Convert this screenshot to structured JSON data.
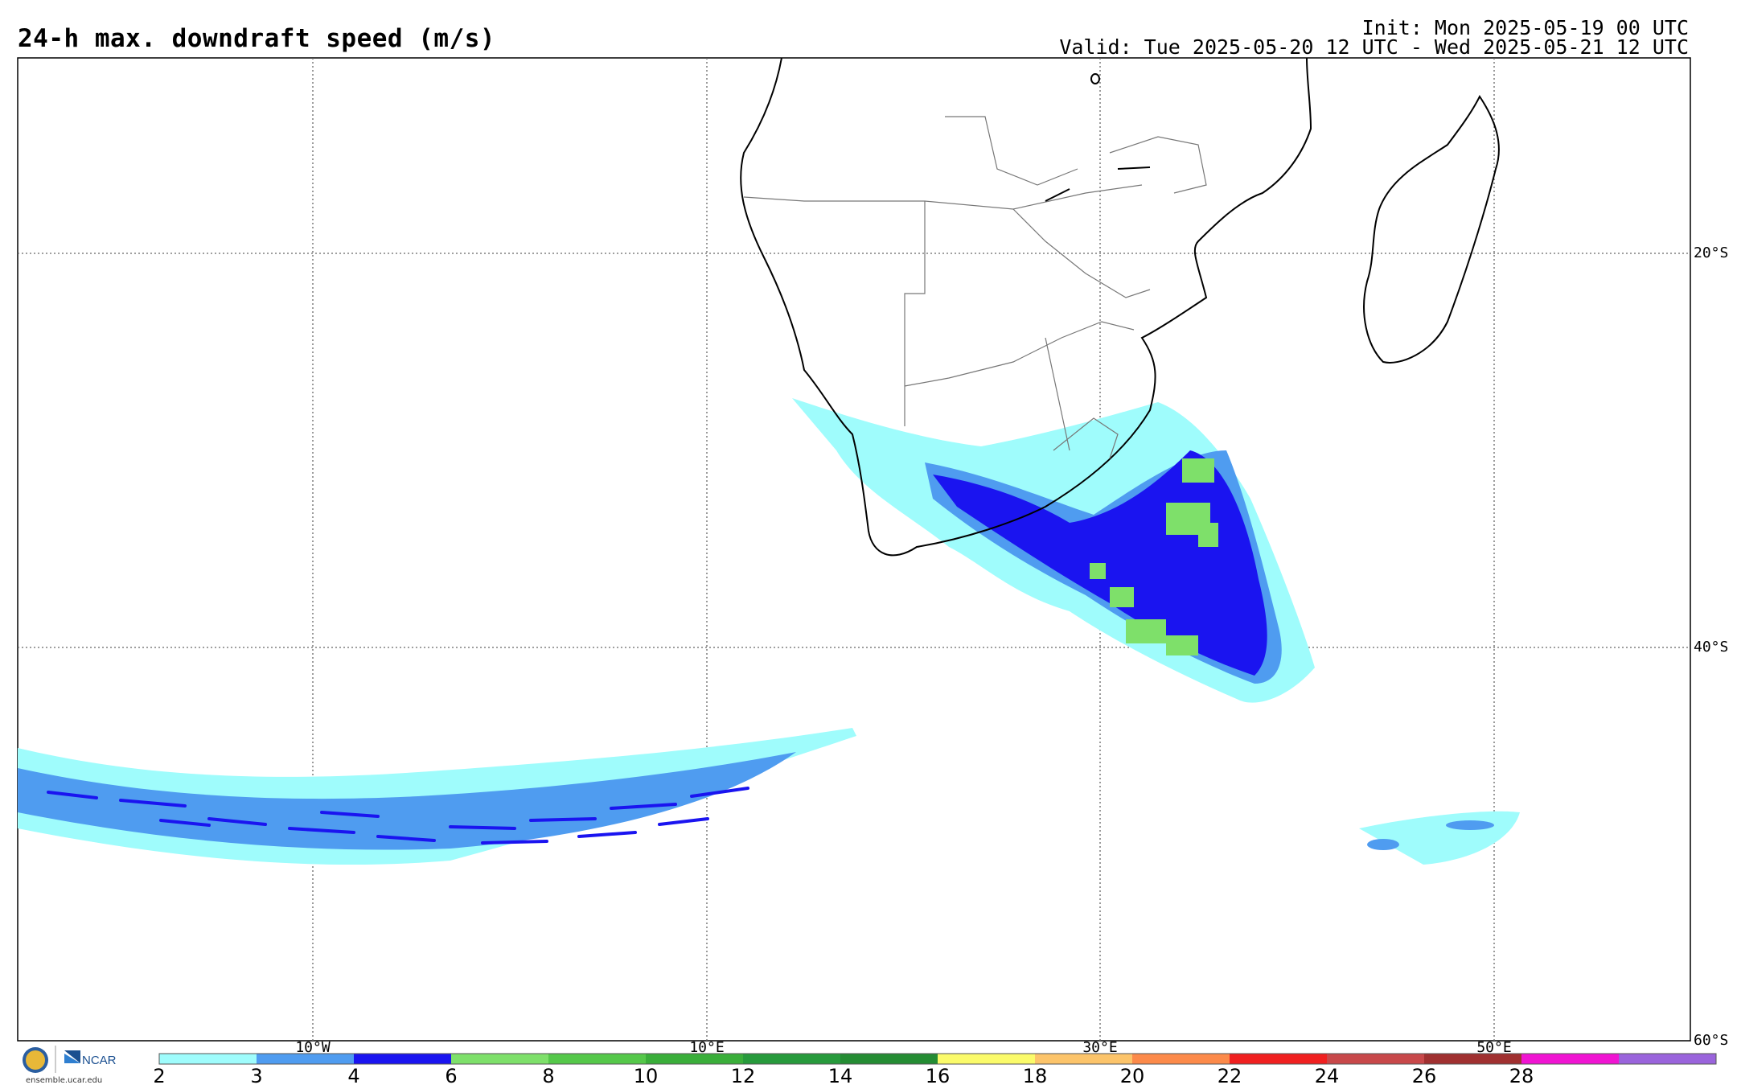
{
  "header": {
    "title": "24-h max. downdraft speed (m/s)",
    "init": "Init: Mon 2025-05-19 00 UTC",
    "valid": "Valid: Tue 2025-05-20 12 UTC - Wed 2025-05-21 12 UTC"
  },
  "map": {
    "latitude_labels": [
      "20°S",
      "40°S",
      "60°S"
    ],
    "longitude_labels": [
      "10°W",
      "10°E",
      "30°E",
      "50°E"
    ],
    "region": "Southern Africa and South Atlantic / Indian Ocean"
  },
  "colorbar": {
    "labels": [
      "2",
      "3",
      "4",
      "6",
      "8",
      "10",
      "12",
      "14",
      "16",
      "18",
      "20",
      "22",
      "24",
      "26",
      "28"
    ],
    "colors": [
      "#9ffcfc",
      "#4f9cf0",
      "#1a14f0",
      "#7ee06a",
      "#55c84a",
      "#3aae3a",
      "#279a3c",
      "#248c33",
      "#fbfb6a",
      "#fcc46a",
      "#fc8a4a",
      "#f02020",
      "#c8484a",
      "#a03030",
      "#f014d2",
      "#9a64dc"
    ]
  },
  "logos": {
    "nsf": "NSF",
    "ncar": "NCAR",
    "url": "ensemble.ucar.edu"
  }
}
